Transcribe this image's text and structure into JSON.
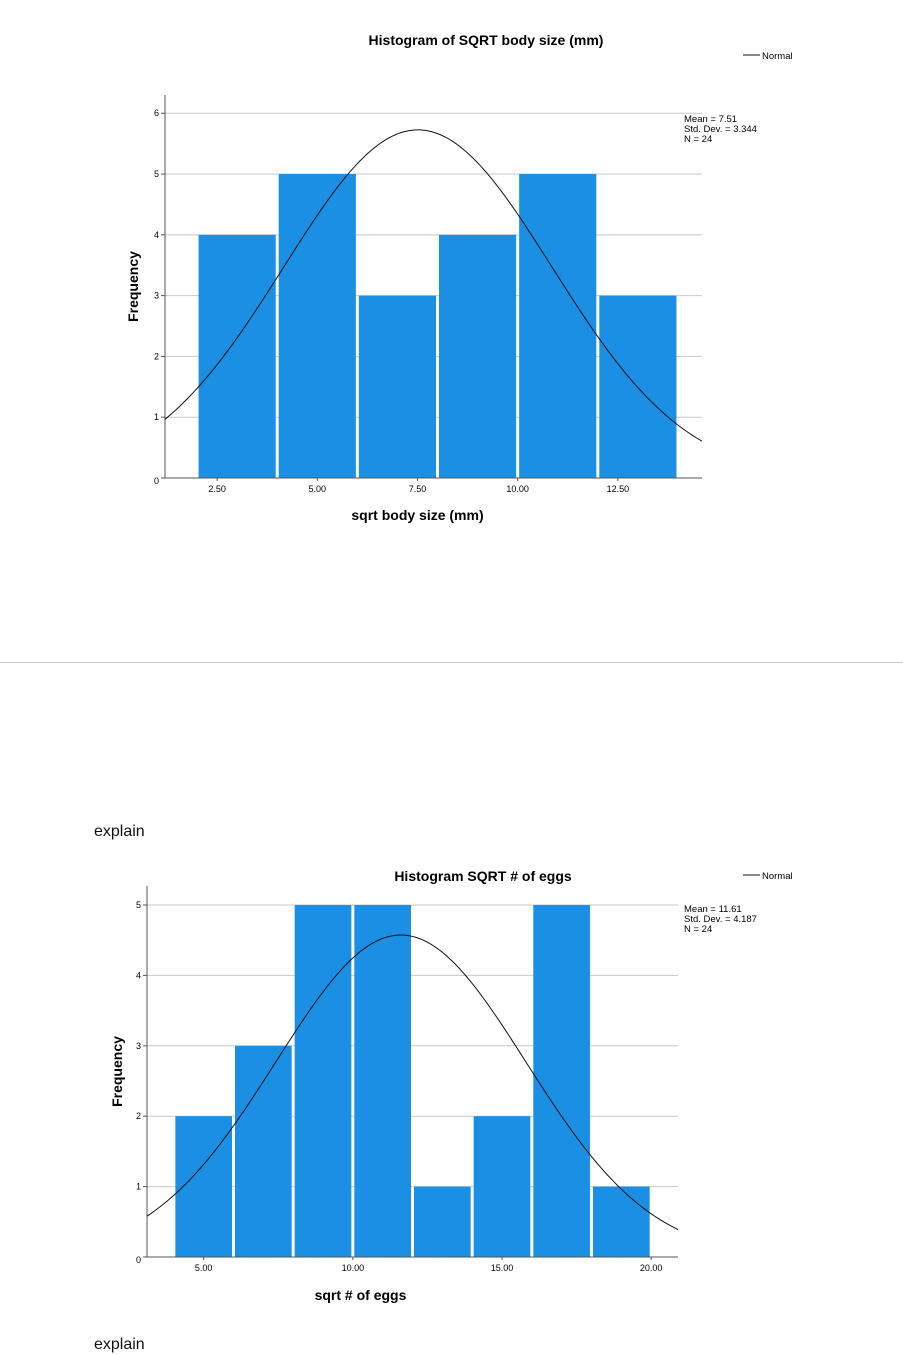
{
  "explain_1": "explain",
  "explain_2": "explain",
  "chart_data": [
    {
      "type": "bar",
      "title": "Histogram of SQRT body size (mm)",
      "xlabel": "sqrt body size (mm)",
      "ylabel": "Frequency",
      "x_ticks": [
        "2.50",
        "5.00",
        "7.50",
        "10.00",
        "12.50"
      ],
      "x_tick_values": [
        2.5,
        5.0,
        7.5,
        10.0,
        12.5
      ],
      "y_ticks": [
        "0",
        "1",
        "2",
        "3",
        "4",
        "5",
        "6"
      ],
      "xlim": [
        1.2,
        14.6
      ],
      "ylim": [
        0,
        6.3
      ],
      "bins": [
        {
          "from": 2.0,
          "to": 4.0,
          "value": 4
        },
        {
          "from": 4.0,
          "to": 6.0,
          "value": 5
        },
        {
          "from": 6.0,
          "to": 8.0,
          "value": 3
        },
        {
          "from": 8.0,
          "to": 10.0,
          "value": 4
        },
        {
          "from": 10.0,
          "to": 12.0,
          "value": 5
        },
        {
          "from": 12.0,
          "to": 14.0,
          "value": 3
        }
      ],
      "bar_color": "#1a8fe3",
      "normal_curve": {
        "mean": 7.51,
        "sd": 3.344,
        "n": 24,
        "bin_width": 2.0
      },
      "stats": [
        "Mean = 7.51",
        "Std. Dev. = 3.344",
        "N = 24"
      ],
      "legend": [
        {
          "label": "Normal",
          "style": "line"
        }
      ],
      "legend_position": "top-right",
      "grid": true
    },
    {
      "type": "bar",
      "title": "Histogram SQRT # of eggs",
      "xlabel": "sqrt # of eggs",
      "ylabel": "Frequency",
      "x_ticks": [
        "5.00",
        "10.00",
        "15.00",
        "20.00"
      ],
      "x_tick_values": [
        5.0,
        10.0,
        15.0,
        20.0
      ],
      "y_ticks": [
        "0",
        "1",
        "2",
        "3",
        "4",
        "5"
      ],
      "xlim": [
        3.1,
        20.9
      ],
      "ylim": [
        0,
        5.27
      ],
      "bins": [
        {
          "from": 4.0,
          "to": 6.0,
          "value": 2
        },
        {
          "from": 6.0,
          "to": 8.0,
          "value": 3
        },
        {
          "from": 8.0,
          "to": 10.0,
          "value": 5
        },
        {
          "from": 10.0,
          "to": 12.0,
          "value": 5
        },
        {
          "from": 12.0,
          "to": 14.0,
          "value": 1
        },
        {
          "from": 14.0,
          "to": 16.0,
          "value": 2
        },
        {
          "from": 16.0,
          "to": 18.0,
          "value": 5
        },
        {
          "from": 18.0,
          "to": 20.0,
          "value": 1
        }
      ],
      "bar_color": "#1a8fe3",
      "normal_curve": {
        "mean": 11.61,
        "sd": 4.187,
        "n": 24,
        "bin_width": 2.0
      },
      "stats": [
        "Mean = 11.61",
        "Std. Dev. = 4.187",
        "N = 24"
      ],
      "legend": [
        {
          "label": "Normal",
          "style": "line"
        }
      ],
      "legend_position": "top-right",
      "grid": true
    }
  ]
}
